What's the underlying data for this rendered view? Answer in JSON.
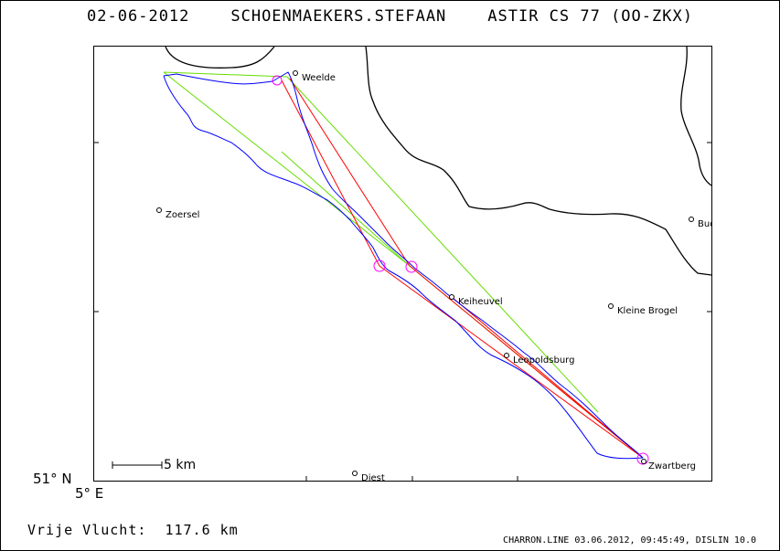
{
  "header": {
    "date": "02-06-2012",
    "pilot": "SCHOENMAEKERS.STEFAAN",
    "glider": "ASTIR CS 77 (OO-ZKX)"
  },
  "map": {
    "towns": [
      {
        "name": "Weelde"
      },
      {
        "name": "Zoersel"
      },
      {
        "name": "Budel"
      },
      {
        "name": "Keiheuvel"
      },
      {
        "name": "Kleine Brogel"
      },
      {
        "name": "Leopoldsburg"
      },
      {
        "name": "Zwartberg"
      },
      {
        "name": "Diest"
      }
    ],
    "colors": {
      "track": "#0000ff",
      "task": "#ff0000",
      "optimized": "#66dd00",
      "turnpoint": "#ff00ff",
      "border": "#000000"
    }
  },
  "scale": {
    "label": "5 km"
  },
  "axes": {
    "lat_label": "51° N",
    "lon_label": "5° E"
  },
  "summary": {
    "label": "Vrije Vlucht:",
    "distance": "117.6 km"
  },
  "footer": {
    "text": "CHARRON.LINE 03.06.2012, 09:45:49, DISLIN 10.0"
  }
}
